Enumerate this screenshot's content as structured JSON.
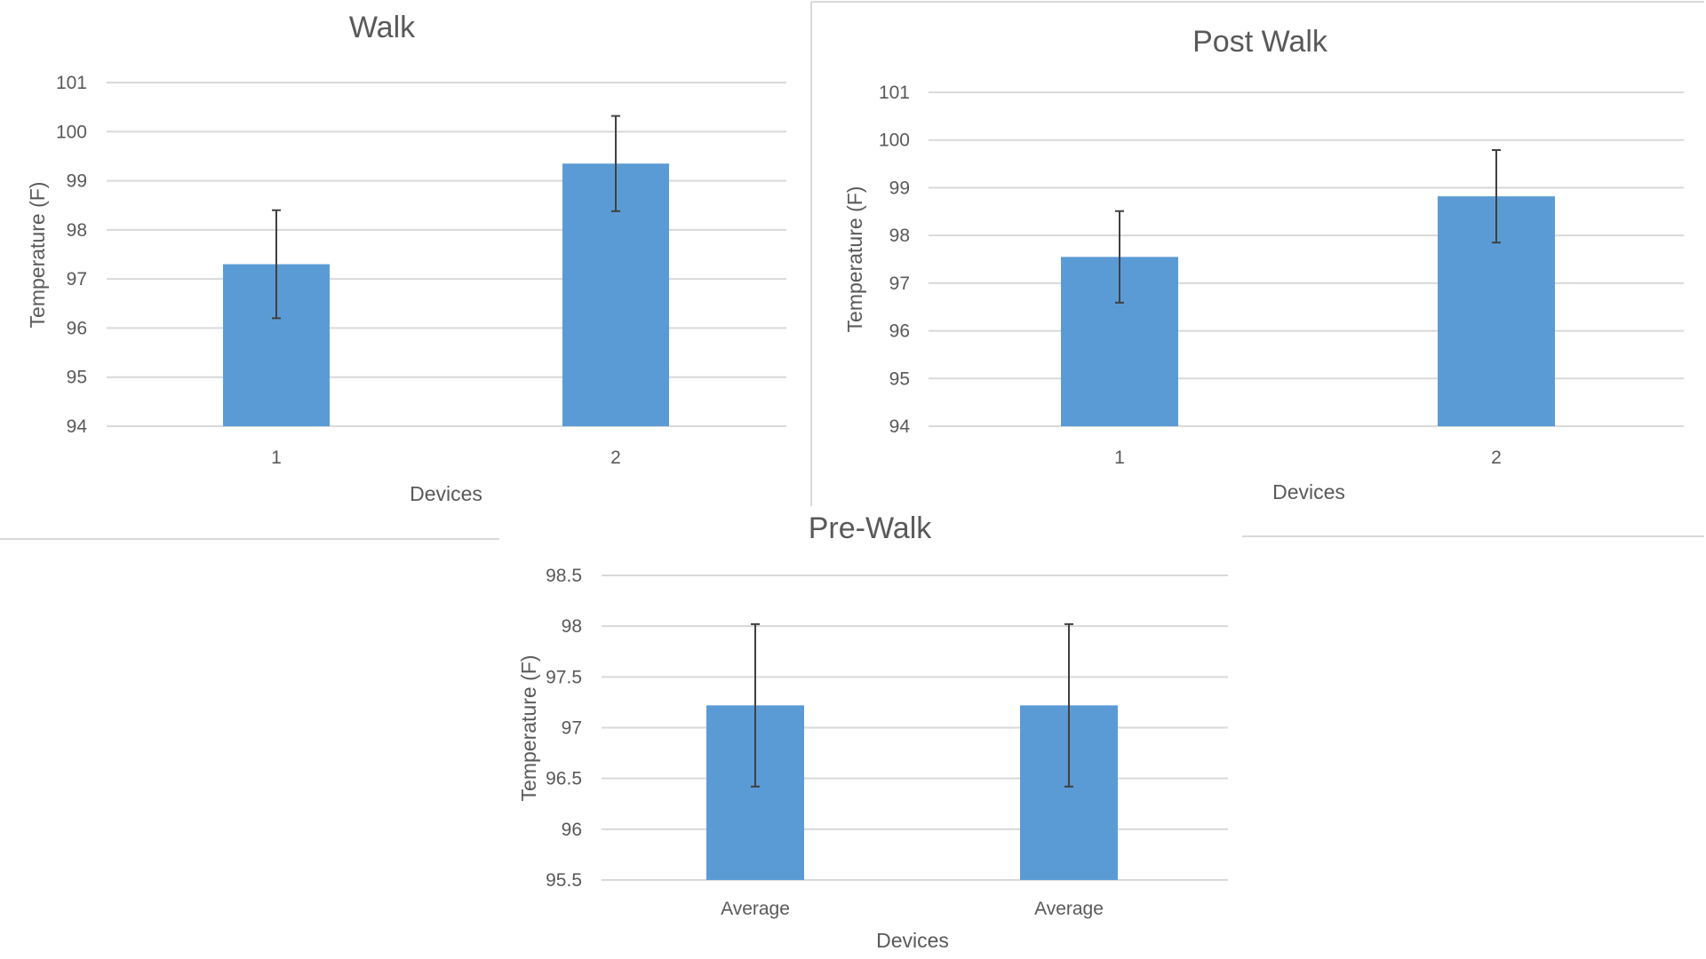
{
  "chart_data": [
    {
      "type": "bar",
      "title": "Walk",
      "xlabel": "Devices",
      "ylabel": "Temperature (F)",
      "categories": [
        "1",
        "2"
      ],
      "values": [
        97.3,
        99.35
      ],
      "error": [
        1.1,
        0.97
      ],
      "ylim": [
        94,
        101
      ],
      "yticks": [
        94,
        95,
        96,
        97,
        98,
        99,
        100,
        101
      ],
      "ytick_labels": [
        "94",
        "95",
        "96",
        "97",
        "98",
        "99",
        "100",
        "101"
      ],
      "grid": true,
      "color": "#5b9bd5"
    },
    {
      "type": "bar",
      "title": "Post Walk",
      "xlabel": "Devices",
      "ylabel": "Temperature (F)",
      "categories": [
        "1",
        "2"
      ],
      "values": [
        97.55,
        98.82
      ],
      "error": [
        0.96,
        0.97
      ],
      "ylim": [
        94,
        101
      ],
      "yticks": [
        94,
        95,
        96,
        97,
        98,
        99,
        100,
        101
      ],
      "ytick_labels": [
        "94",
        "95",
        "96",
        "97",
        "98",
        "99",
        "100",
        "101"
      ],
      "grid": true,
      "color": "#5b9bd5"
    },
    {
      "type": "bar",
      "title": "Pre-Walk",
      "xlabel": "Devices",
      "ylabel": "Temperature (F)",
      "categories": [
        "Average",
        "Average"
      ],
      "values": [
        97.22,
        97.22
      ],
      "error": [
        0.8,
        0.8
      ],
      "ylim": [
        95.5,
        98.5
      ],
      "yticks": [
        95.5,
        96,
        96.5,
        97,
        97.5,
        98,
        98.5
      ],
      "ytick_labels": [
        "95.5",
        "96",
        "96.5",
        "97",
        "97.5",
        "98",
        "98.5"
      ],
      "grid": true,
      "color": "#5b9bd5"
    }
  ]
}
